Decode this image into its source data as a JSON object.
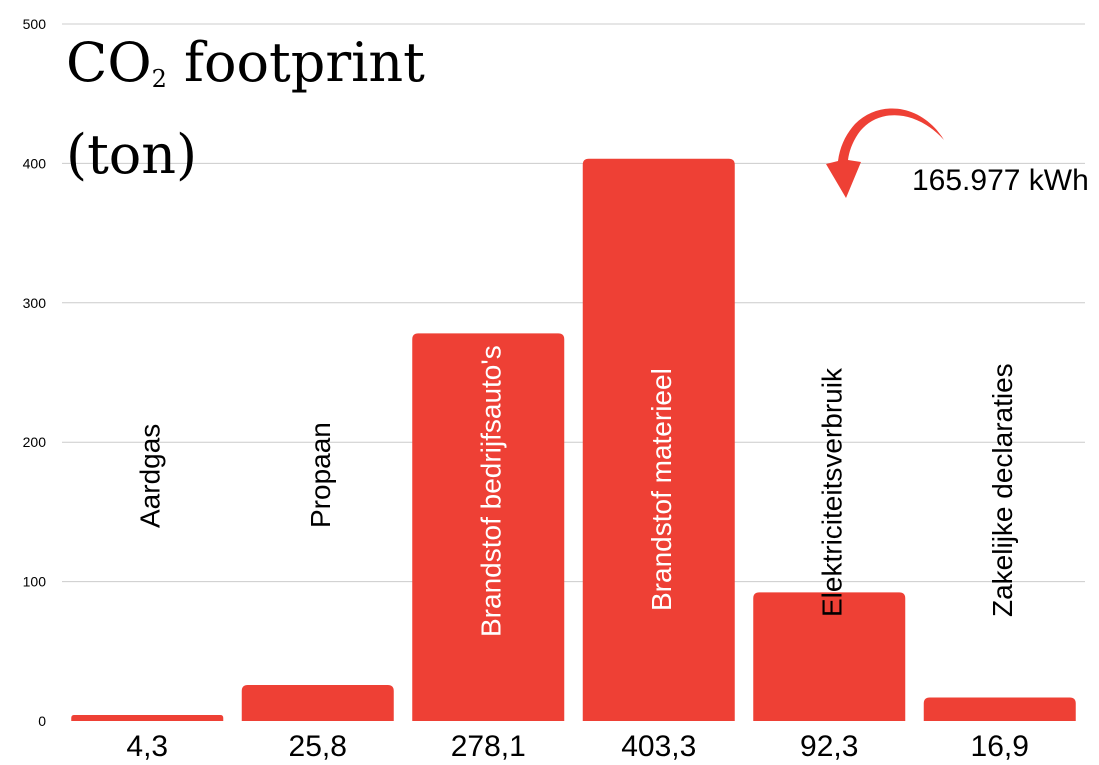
{
  "chart_data": {
    "type": "bar",
    "title_parts": [
      "CO",
      "2",
      " footprint",
      "(ton)"
    ],
    "categories": [
      "Aardgas",
      "Propaan",
      "Brandstof bedrijfsauto's",
      "Brandstof materieel",
      "Elektriciteitsverbruik",
      "Zakelijke declaraties"
    ],
    "values": [
      4.3,
      25.8,
      278.1,
      403.3,
      92.3,
      16.9
    ],
    "value_labels": [
      "4,3",
      "25,8",
      "278,1",
      "403,3",
      "92,3",
      "16,9"
    ],
    "ylim": [
      0,
      500
    ],
    "yticks": [
      0,
      100,
      200,
      300,
      400,
      500
    ],
    "grid": true,
    "annotation": {
      "text": "165.977 kWh",
      "category": "Elektriciteitsverbruik"
    },
    "colors": {
      "bar": "#ee4035",
      "arrow": "#ee4035",
      "grid": "#cccccc",
      "axis_text": "#000000",
      "label_inside": "#ffffff",
      "label_outside": "#000000"
    }
  }
}
